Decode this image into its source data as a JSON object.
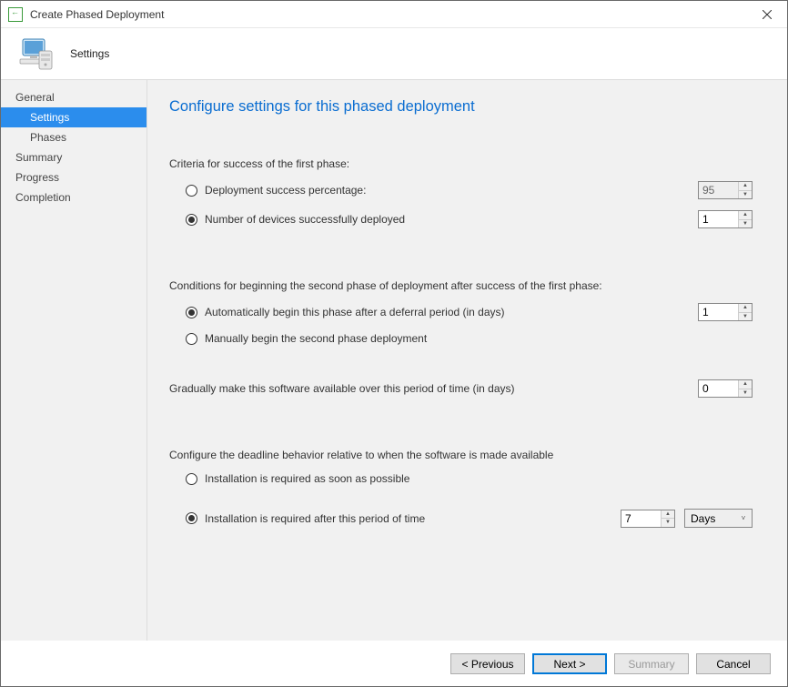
{
  "window": {
    "title": "Create Phased Deployment"
  },
  "header": {
    "title": "Settings"
  },
  "sidebar": {
    "items": [
      {
        "label": "General",
        "sub": false,
        "selected": false
      },
      {
        "label": "Settings",
        "sub": true,
        "selected": true
      },
      {
        "label": "Phases",
        "sub": true,
        "selected": false
      },
      {
        "label": "Summary",
        "sub": false,
        "selected": false
      },
      {
        "label": "Progress",
        "sub": false,
        "selected": false
      },
      {
        "label": "Completion",
        "sub": false,
        "selected": false
      }
    ]
  },
  "content": {
    "title": "Configure settings for this phased deployment",
    "criteria_label": "Criteria for success of the first phase:",
    "criteria_opt1": "Deployment success percentage:",
    "criteria_opt1_value": "95",
    "criteria_opt2": "Number of devices successfully deployed",
    "criteria_opt2_value": "1",
    "conditions_label": "Conditions for beginning the second phase of deployment after success of the first phase:",
    "conditions_opt1": "Automatically begin this phase after a deferral period (in days)",
    "conditions_opt1_value": "1",
    "conditions_opt2": "Manually begin the second phase deployment",
    "gradual_label": "Gradually make this software available over this period of time (in days)",
    "gradual_value": "0",
    "deadline_label": "Configure the deadline behavior relative to when the software is made available",
    "deadline_opt1": "Installation is required as soon as possible",
    "deadline_opt2": "Installation is required after this period of time",
    "deadline_opt2_value": "7",
    "deadline_unit": "Days"
  },
  "footer": {
    "previous": "< Previous",
    "next": "Next >",
    "summary": "Summary",
    "cancel": "Cancel"
  }
}
